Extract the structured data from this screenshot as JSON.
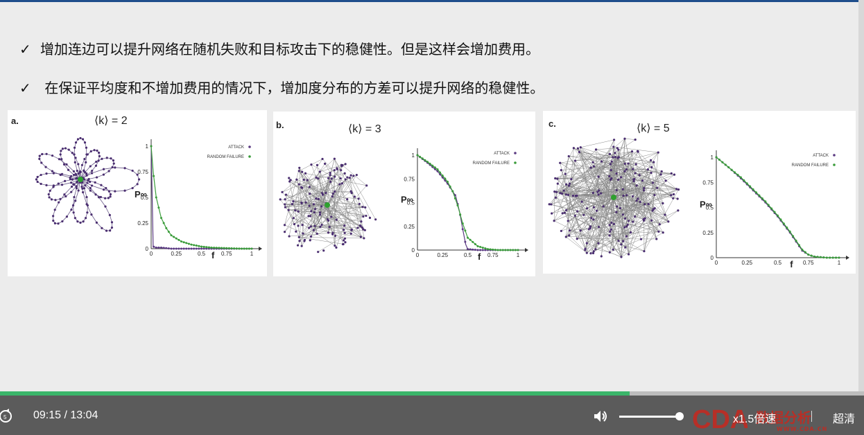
{
  "slide": {
    "bullets": [
      {
        "mark": "✓",
        "text": "增加连边可以提升网络在随机失败和目标攻击下的稳健性。但是这样会增加费用。"
      },
      {
        "mark": "✓",
        "text": " 在保证平均度和不增加费用的情况下，增加度分布的方差可以提升网络的稳健性。"
      }
    ]
  },
  "panels": [
    {
      "label": "a.",
      "k_label": "⟨k⟩ = 2",
      "variant": "a"
    },
    {
      "label": "b.",
      "k_label": "⟨k⟩ = 3",
      "variant": "b"
    },
    {
      "label": "c.",
      "k_label": "⟨k⟩ = 5",
      "variant": "c"
    }
  ],
  "chart_common": {
    "ylabel": "P∞",
    "xlabel": "f",
    "xticks": [
      "0",
      "0.25",
      "0.5",
      "0.75",
      "1"
    ],
    "yticks": [
      "0",
      "0.25",
      "0.5",
      "0.75",
      "1"
    ],
    "legend": [
      "ATTACK",
      "RANDOM FAILURE"
    ],
    "colors": {
      "attack": "#5b3a82",
      "random": "#3a9c3a"
    }
  },
  "chart_data": [
    {
      "type": "line",
      "xlabel": "f",
      "ylabel": "P∞",
      "xlim": [
        0,
        1
      ],
      "ylim": [
        0,
        1
      ],
      "legend_position": "top-right",
      "series": [
        {
          "name": "ATTACK",
          "x": [
            0,
            0.02,
            0.05,
            0.1,
            0.2,
            0.4,
            0.6,
            0.8,
            1.0
          ],
          "values": [
            1.0,
            0.02,
            0.01,
            0.01,
            0.0,
            0.0,
            0.0,
            0.0,
            0.0
          ]
        },
        {
          "name": "RANDOM FAILURE",
          "x": [
            0,
            0.02,
            0.05,
            0.1,
            0.15,
            0.2,
            0.3,
            0.4,
            0.5,
            0.6,
            0.75,
            0.9,
            1.0
          ],
          "values": [
            1.0,
            0.75,
            0.5,
            0.3,
            0.2,
            0.13,
            0.07,
            0.04,
            0.02,
            0.01,
            0.005,
            0.0,
            0.0
          ]
        }
      ]
    },
    {
      "type": "line",
      "xlabel": "f",
      "ylabel": "P∞",
      "xlim": [
        0,
        1
      ],
      "ylim": [
        0,
        1
      ],
      "legend_position": "top-right",
      "series": [
        {
          "name": "ATTACK",
          "x": [
            0,
            0.1,
            0.2,
            0.3,
            0.38,
            0.42,
            0.45,
            0.48,
            0.5,
            0.6,
            0.8,
            1.0
          ],
          "values": [
            1.0,
            0.92,
            0.83,
            0.7,
            0.57,
            0.4,
            0.22,
            0.06,
            0.01,
            0.0,
            0.0,
            0.0
          ]
        },
        {
          "name": "RANDOM FAILURE",
          "x": [
            0,
            0.1,
            0.2,
            0.3,
            0.35,
            0.4,
            0.45,
            0.5,
            0.6,
            0.7,
            0.8,
            1.0
          ],
          "values": [
            1.0,
            0.93,
            0.85,
            0.72,
            0.62,
            0.47,
            0.28,
            0.13,
            0.04,
            0.01,
            0.0,
            0.0
          ]
        }
      ]
    },
    {
      "type": "line",
      "xlabel": "f",
      "ylabel": "P∞",
      "xlim": [
        0,
        1
      ],
      "ylim": [
        0,
        1
      ],
      "legend_position": "top-right",
      "series": [
        {
          "name": "ATTACK",
          "x": [
            0,
            0.1,
            0.2,
            0.3,
            0.4,
            0.5,
            0.6,
            0.65,
            0.7,
            0.75,
            0.8,
            0.9,
            1.0
          ],
          "values": [
            1.0,
            0.9,
            0.79,
            0.67,
            0.55,
            0.41,
            0.25,
            0.16,
            0.07,
            0.03,
            0.01,
            0.0,
            0.0
          ]
        },
        {
          "name": "RANDOM FAILURE",
          "x": [
            0,
            0.1,
            0.2,
            0.3,
            0.4,
            0.5,
            0.6,
            0.65,
            0.7,
            0.75,
            0.8,
            0.9,
            1.0
          ],
          "values": [
            1.0,
            0.9,
            0.8,
            0.68,
            0.56,
            0.42,
            0.26,
            0.17,
            0.08,
            0.03,
            0.01,
            0.0,
            0.0
          ]
        }
      ]
    }
  ],
  "player": {
    "time_current": "09:15",
    "time_sep": "/",
    "time_total": "13:04",
    "progress": 0.729,
    "volume": 0.95,
    "speed_label": "x1.5倍速",
    "quality_label": "超清",
    "watermark_text": "数据分析",
    "watermark_url": "WWW.CDA.CN"
  }
}
